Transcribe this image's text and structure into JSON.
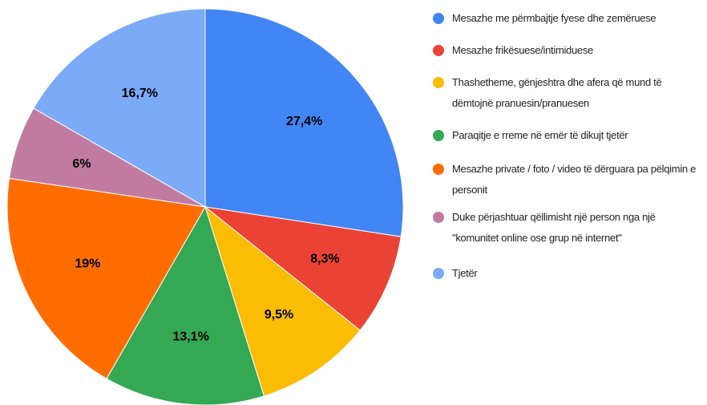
{
  "chart_data": {
    "type": "pie",
    "categories": [
      "Mesazhe me përmbajtje fyese dhe zemëruese",
      "Mesazhe frikësuese/intimiduese",
      "Thashetheme, gënjeshtra dhe afera që mund të dëmtojnë pranuesin/pranuesen",
      "Paraqitje e rreme në emër të dikujt tjetër",
      "Mesazhe private / foto / video të dërguara pa pëlqimin e personit",
      "Duke përjashtuar qëllimisht një person nga një \"komunitet online ose grup në internet\"",
      "Tjetër"
    ],
    "values": [
      27.4,
      8.3,
      9.5,
      13.1,
      19,
      6,
      16.7
    ],
    "value_labels": [
      "27,4%",
      "8,3%",
      "9,5%",
      "13,1%",
      "19%",
      "6%",
      "16,7%"
    ],
    "colors": [
      "#4285f4",
      "#ea4335",
      "#fbbc04",
      "#34a853",
      "#ff6d01",
      "#c27ba0",
      "#7baaf7"
    ],
    "legend": "right"
  }
}
